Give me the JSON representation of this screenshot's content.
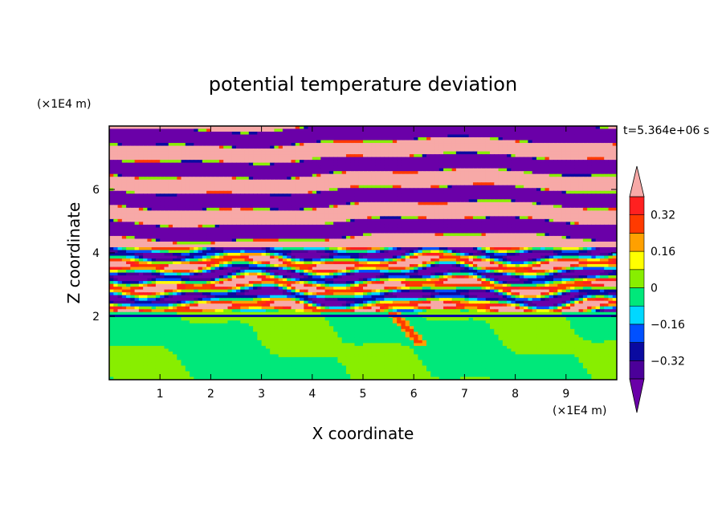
{
  "chart_data": {
    "type": "heatmap",
    "title": "potential temperature deviation",
    "xlabel": "X coordinate",
    "ylabel": "Z coordinate",
    "x_unit": "(×1E4 m)",
    "y_unit": "(×1E4 m)",
    "time_label": "t=5.364e+06 s",
    "xlim": [
      0,
      10
    ],
    "ylim": [
      0,
      8
    ],
    "x_ticks": [
      "1",
      "2",
      "3",
      "4",
      "5",
      "6",
      "7",
      "8",
      "9"
    ],
    "y_ticks": [
      "2",
      "4",
      "6"
    ],
    "colorbar": {
      "tick_labels": [
        "0.32",
        "0.16",
        "0",
        "−0.16",
        "−0.32"
      ],
      "levels": [
        -0.4,
        -0.32,
        -0.24,
        -0.16,
        -0.08,
        0,
        0.08,
        0.16,
        0.24,
        0.32,
        0.4
      ],
      "colors_low_to_high": [
        "#4b0099",
        "#0a0aa0",
        "#0050ff",
        "#00d8ff",
        "#00e87a",
        "#88ee00",
        "#ffff00",
        "#ffa000",
        "#ff3a00",
        "#ff2020"
      ],
      "under_color": "#6a00a8",
      "over_color": "#f7a9a7"
    },
    "regions": [
      {
        "zone": "z 0–2",
        "pattern": "green and light-green swirls with thin yellow/orange streak near x=5.5–6"
      },
      {
        "zone": "z 2–4",
        "pattern": "highly mixed layers, full color range"
      },
      {
        "zone": "z 4–8",
        "pattern": "alternating horizontal pink and purple bands"
      }
    ]
  }
}
